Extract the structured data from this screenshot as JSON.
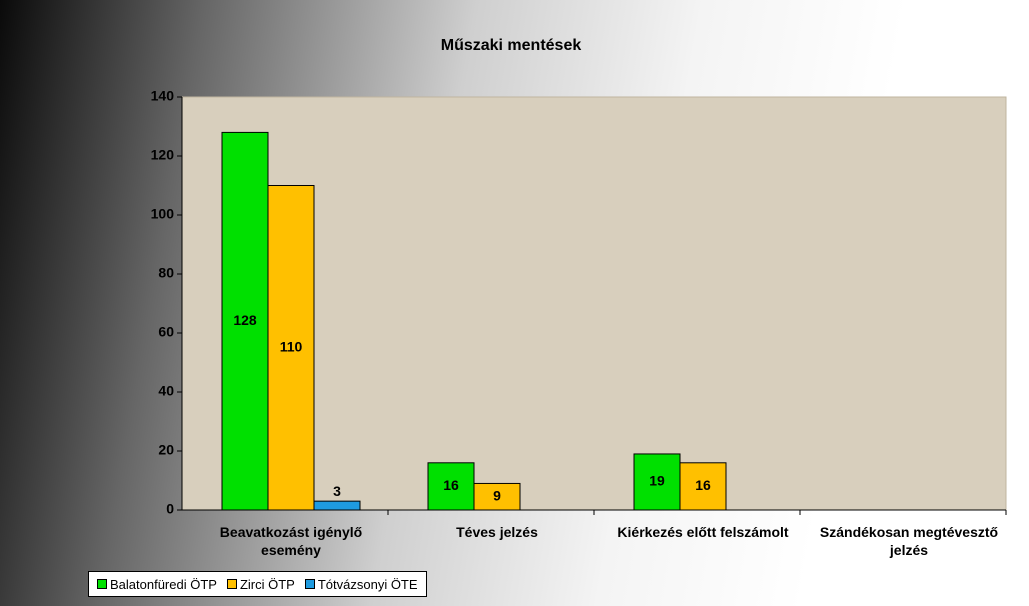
{
  "chart_data": {
    "type": "bar",
    "title": "Műszaki mentések",
    "categories": [
      "Beavatkozást igénylő esemény",
      "Téves jelzés",
      "Kiérkezés előtt felszámolt",
      "Szándékosan megtévesztő jelzés"
    ],
    "series": [
      {
        "name": "Balatonfüredi ÖTP",
        "color": "#00e000",
        "values": [
          128,
          16,
          19,
          null
        ]
      },
      {
        "name": "Zirci ÖTP",
        "color": "#ffc000",
        "values": [
          110,
          9,
          16,
          null
        ]
      },
      {
        "name": "Tótvázsonyi ÖTE",
        "color": "#1e9be0",
        "values": [
          3,
          null,
          null,
          null
        ]
      }
    ],
    "ylim": [
      0,
      140
    ],
    "yticks": [
      0,
      20,
      40,
      60,
      80,
      100,
      120,
      140
    ],
    "grid": false,
    "legend": "bottom-left"
  }
}
